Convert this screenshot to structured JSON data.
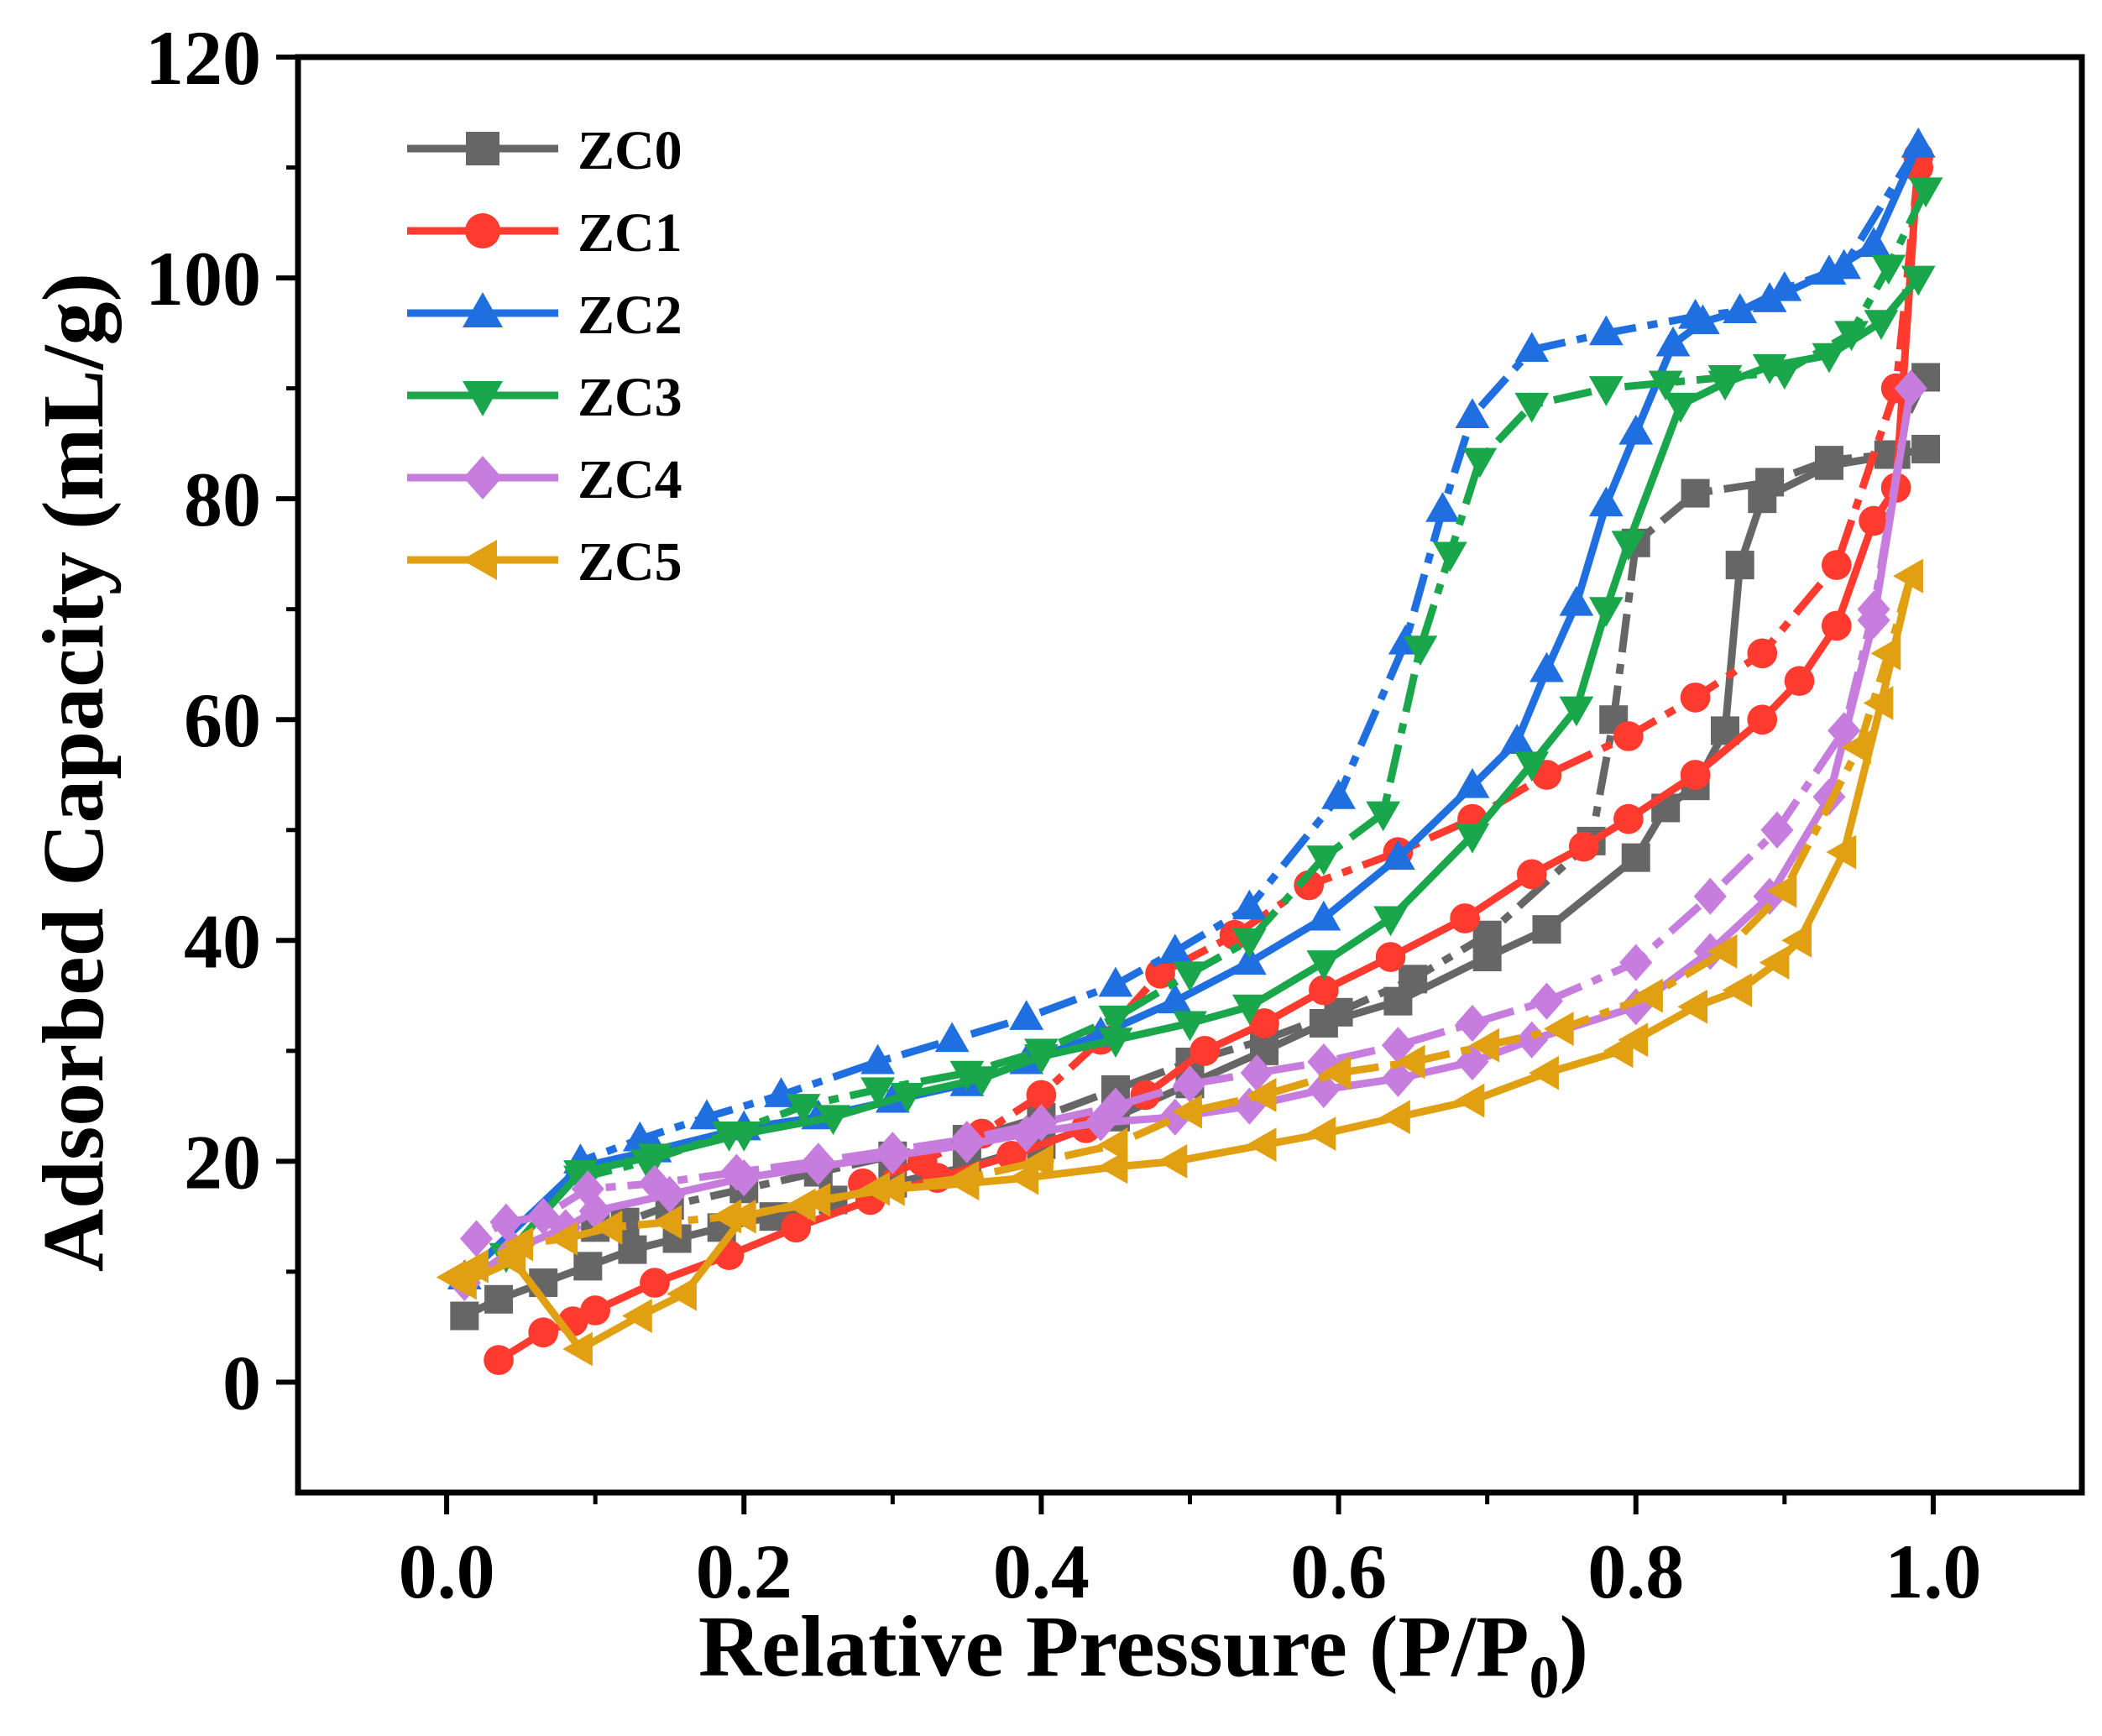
{
  "chart_data": {
    "type": "line",
    "xlabel": "Relative Pressure (P/P",
    "xlabel_sub": "0",
    "xlabel_end": ")",
    "ylabel": "Adsorbed Capacity (mL/g)",
    "xlim": [
      -0.1,
      1.1
    ],
    "ylim": [
      -10,
      120
    ],
    "xticks": [
      0.0,
      0.2,
      0.4,
      0.6,
      0.8,
      1.0
    ],
    "xtick_labels": [
      "0.0",
      "0.2",
      "0.4",
      "0.6",
      "0.8",
      "1.0"
    ],
    "yticks": [
      0,
      20,
      40,
      60,
      80,
      100,
      120
    ],
    "ytick_labels": [
      "0",
      "20",
      "40",
      "60",
      "80",
      "100",
      "120"
    ],
    "legend_position": "top-left",
    "series": [
      {
        "name": "ZC0",
        "color": "#666666",
        "marker": "square",
        "adsorption": [
          [
            0.012,
            6
          ],
          [
            0.035,
            7.5
          ],
          [
            0.065,
            9
          ],
          [
            0.095,
            10.5
          ],
          [
            0.125,
            12
          ],
          [
            0.155,
            13
          ],
          [
            0.185,
            14
          ],
          [
            0.22,
            15
          ],
          [
            0.26,
            16.5
          ],
          [
            0.3,
            18
          ],
          [
            0.35,
            19.5
          ],
          [
            0.4,
            21.5
          ],
          [
            0.45,
            24
          ],
          [
            0.5,
            27
          ],
          [
            0.55,
            30
          ],
          [
            0.59,
            32.5
          ],
          [
            0.64,
            34.5
          ],
          [
            0.7,
            38.5
          ],
          [
            0.74,
            41
          ],
          [
            0.8,
            47.5
          ],
          [
            0.82,
            52
          ],
          [
            0.84,
            54
          ],
          [
            0.86,
            59
          ],
          [
            0.87,
            74
          ],
          [
            0.885,
            80
          ],
          [
            0.93,
            83
          ],
          [
            0.975,
            84
          ],
          [
            0.995,
            84.5
          ]
        ],
        "desorption": [
          [
            0.995,
            91
          ],
          [
            0.97,
            84
          ],
          [
            0.93,
            83.5
          ],
          [
            0.89,
            81.5
          ],
          [
            0.84,
            80.5
          ],
          [
            0.8,
            76
          ],
          [
            0.785,
            60
          ],
          [
            0.77,
            49
          ],
          [
            0.7,
            40.5
          ],
          [
            0.65,
            36.5
          ],
          [
            0.6,
            33.5
          ],
          [
            0.55,
            31
          ],
          [
            0.5,
            29
          ],
          [
            0.45,
            26.5
          ],
          [
            0.4,
            24
          ],
          [
            0.35,
            22
          ],
          [
            0.3,
            20.5
          ],
          [
            0.25,
            19
          ],
          [
            0.2,
            17.5
          ],
          [
            0.15,
            16
          ],
          [
            0.12,
            14.5
          ],
          [
            0.1,
            14
          ]
        ]
      },
      {
        "name": "ZC1",
        "color": "#ff3b30",
        "marker": "circle",
        "adsorption": [
          [
            0.035,
            2
          ],
          [
            0.065,
            4.5
          ],
          [
            0.085,
            5.5
          ],
          [
            0.1,
            6.5
          ],
          [
            0.14,
            9
          ],
          [
            0.19,
            11.5
          ],
          [
            0.235,
            14
          ],
          [
            0.285,
            16.5
          ],
          [
            0.33,
            18.5
          ],
          [
            0.38,
            20.5
          ],
          [
            0.43,
            23
          ],
          [
            0.47,
            26
          ],
          [
            0.51,
            30
          ],
          [
            0.55,
            32.5
          ],
          [
            0.59,
            35.5
          ],
          [
            0.635,
            38.5
          ],
          [
            0.685,
            42
          ],
          [
            0.73,
            46
          ],
          [
            0.765,
            48.5
          ],
          [
            0.795,
            51
          ],
          [
            0.84,
            55
          ],
          [
            0.885,
            60
          ],
          [
            0.91,
            63.5
          ],
          [
            0.935,
            68.5
          ],
          [
            0.96,
            78
          ],
          [
            0.975,
            81
          ],
          [
            0.99,
            111
          ]
        ],
        "desorption": [
          [
            0.99,
            110
          ],
          [
            0.975,
            90
          ],
          [
            0.935,
            74
          ],
          [
            0.885,
            66
          ],
          [
            0.84,
            62
          ],
          [
            0.795,
            58.5
          ],
          [
            0.74,
            55
          ],
          [
            0.69,
            51
          ],
          [
            0.64,
            48
          ],
          [
            0.58,
            45
          ],
          [
            0.53,
            40.5
          ],
          [
            0.48,
            37
          ],
          [
            0.44,
            31
          ],
          [
            0.4,
            26
          ],
          [
            0.36,
            22.5
          ],
          [
            0.32,
            20
          ],
          [
            0.28,
            18
          ]
        ]
      },
      {
        "name": "ZC2",
        "color": "#1f6fe0",
        "marker": "triangle-up",
        "adsorption": [
          [
            0.012,
            9.5
          ],
          [
            0.09,
            19.5
          ],
          [
            0.14,
            21
          ],
          [
            0.2,
            23
          ],
          [
            0.25,
            24
          ],
          [
            0.3,
            25.5
          ],
          [
            0.35,
            27
          ],
          [
            0.39,
            29
          ],
          [
            0.44,
            31.5
          ],
          [
            0.49,
            34.5
          ],
          [
            0.54,
            38
          ],
          [
            0.59,
            42
          ],
          [
            0.64,
            47.5
          ],
          [
            0.69,
            54
          ],
          [
            0.72,
            58
          ],
          [
            0.74,
            64.5
          ],
          [
            0.76,
            70.5
          ],
          [
            0.78,
            79.5
          ],
          [
            0.8,
            86
          ],
          [
            0.825,
            94
          ],
          [
            0.845,
            96
          ],
          [
            0.87,
            97
          ],
          [
            0.89,
            98
          ],
          [
            0.93,
            100.5
          ],
          [
            0.96,
            103
          ],
          [
            0.99,
            112
          ]
        ],
        "desorption": [
          [
            0.99,
            112
          ],
          [
            0.94,
            101
          ],
          [
            0.9,
            99
          ],
          [
            0.87,
            97
          ],
          [
            0.84,
            96.5
          ],
          [
            0.78,
            95
          ],
          [
            0.73,
            93.5
          ],
          [
            0.69,
            87.5
          ],
          [
            0.67,
            79
          ],
          [
            0.645,
            67
          ],
          [
            0.6,
            53
          ],
          [
            0.54,
            43
          ],
          [
            0.49,
            39
          ],
          [
            0.45,
            36
          ],
          [
            0.39,
            33
          ],
          [
            0.34,
            31
          ],
          [
            0.29,
            29
          ],
          [
            0.225,
            26
          ],
          [
            0.175,
            24
          ],
          [
            0.13,
            22
          ],
          [
            0.09,
            20
          ]
        ]
      },
      {
        "name": "ZC3",
        "color": "#1aa64b",
        "marker": "triangle-down",
        "adsorption": [
          [
            0.012,
            9
          ],
          [
            0.04,
            11.5
          ],
          [
            0.09,
            19
          ],
          [
            0.14,
            20.5
          ],
          [
            0.2,
            22.5
          ],
          [
            0.26,
            24
          ],
          [
            0.31,
            26
          ],
          [
            0.36,
            27.5
          ],
          [
            0.4,
            29.5
          ],
          [
            0.45,
            31
          ],
          [
            0.5,
            32.5
          ],
          [
            0.54,
            34
          ],
          [
            0.59,
            38
          ],
          [
            0.635,
            42
          ],
          [
            0.69,
            49.5
          ],
          [
            0.73,
            56
          ],
          [
            0.76,
            61
          ],
          [
            0.78,
            70
          ],
          [
            0.795,
            76
          ],
          [
            0.83,
            88.5
          ],
          [
            0.86,
            90.5
          ],
          [
            0.89,
            92
          ],
          [
            0.93,
            93
          ],
          [
            0.965,
            96
          ],
          [
            0.99,
            100
          ]
        ],
        "desorption": [
          [
            0.995,
            108
          ],
          [
            0.97,
            101
          ],
          [
            0.945,
            95
          ],
          [
            0.9,
            91.5
          ],
          [
            0.86,
            91
          ],
          [
            0.82,
            90.5
          ],
          [
            0.78,
            90
          ],
          [
            0.73,
            88.5
          ],
          [
            0.695,
            83.5
          ],
          [
            0.675,
            75
          ],
          [
            0.655,
            66.5
          ],
          [
            0.63,
            51.5
          ],
          [
            0.59,
            47.5
          ],
          [
            0.54,
            40
          ],
          [
            0.5,
            37
          ],
          [
            0.45,
            33
          ],
          [
            0.4,
            30
          ],
          [
            0.35,
            28
          ],
          [
            0.29,
            26.5
          ],
          [
            0.24,
            25
          ],
          [
            0.19,
            22.5
          ],
          [
            0.135,
            20
          ],
          [
            0.09,
            18.5
          ]
        ]
      },
      {
        "name": "ZC4",
        "color": "#c77ddd",
        "marker": "diamond",
        "adsorption": [
          [
            0.012,
            9
          ],
          [
            0.045,
            12
          ],
          [
            0.08,
            14
          ],
          [
            0.1,
            15.5
          ],
          [
            0.15,
            17
          ],
          [
            0.2,
            18.5
          ],
          [
            0.25,
            19.5
          ],
          [
            0.3,
            20.5
          ],
          [
            0.35,
            21.5
          ],
          [
            0.39,
            22.5
          ],
          [
            0.44,
            23.5
          ],
          [
            0.49,
            24
          ],
          [
            0.54,
            25
          ],
          [
            0.59,
            26.5
          ],
          [
            0.64,
            27.5
          ],
          [
            0.69,
            29
          ],
          [
            0.73,
            31
          ],
          [
            0.8,
            34
          ],
          [
            0.85,
            39
          ],
          [
            0.89,
            44
          ],
          [
            0.93,
            53
          ],
          [
            0.96,
            69
          ],
          [
            0.985,
            90
          ]
        ],
        "desorption": [
          [
            0.985,
            90
          ],
          [
            0.96,
            70
          ],
          [
            0.94,
            59
          ],
          [
            0.895,
            50
          ],
          [
            0.85,
            44
          ],
          [
            0.8,
            38
          ],
          [
            0.74,
            34.5
          ],
          [
            0.69,
            32.5
          ],
          [
            0.64,
            30.5
          ],
          [
            0.59,
            29
          ],
          [
            0.545,
            28
          ],
          [
            0.5,
            27
          ],
          [
            0.45,
            25
          ],
          [
            0.4,
            23.5
          ],
          [
            0.35,
            22
          ],
          [
            0.3,
            21
          ],
          [
            0.25,
            20
          ],
          [
            0.195,
            19
          ],
          [
            0.14,
            18
          ],
          [
            0.095,
            17.5
          ],
          [
            0.065,
            15
          ],
          [
            0.04,
            14.5
          ],
          [
            0.02,
            13
          ]
        ]
      },
      {
        "name": "ZC5",
        "color": "#e0a012",
        "marker": "triangle-left",
        "adsorption": [
          [
            0.012,
            9
          ],
          [
            0.045,
            11
          ],
          [
            0.09,
            3
          ],
          [
            0.13,
            6
          ],
          [
            0.16,
            8
          ],
          [
            0.2,
            15
          ],
          [
            0.25,
            16.5
          ],
          [
            0.3,
            17.5
          ],
          [
            0.35,
            18
          ],
          [
            0.39,
            18.5
          ],
          [
            0.45,
            19.5
          ],
          [
            0.49,
            20
          ],
          [
            0.55,
            21.5
          ],
          [
            0.59,
            22.5
          ],
          [
            0.64,
            24
          ],
          [
            0.69,
            25.5
          ],
          [
            0.74,
            28
          ],
          [
            0.79,
            30
          ],
          [
            0.8,
            31
          ],
          [
            0.84,
            34
          ],
          [
            0.87,
            35.5
          ],
          [
            0.895,
            38
          ],
          [
            0.91,
            40
          ],
          [
            0.94,
            48
          ],
          [
            0.965,
            61.5
          ],
          [
            0.985,
            73
          ]
        ],
        "desorption": [
          [
            0.985,
            73
          ],
          [
            0.97,
            66
          ],
          [
            0.95,
            57.5
          ],
          [
            0.9,
            44.5
          ],
          [
            0.86,
            39
          ],
          [
            0.81,
            35
          ],
          [
            0.75,
            32
          ],
          [
            0.7,
            30.5
          ],
          [
            0.65,
            29
          ],
          [
            0.6,
            28
          ],
          [
            0.55,
            26
          ],
          [
            0.5,
            24.5
          ],
          [
            0.45,
            21.5
          ],
          [
            0.4,
            20
          ],
          [
            0.35,
            18.5
          ],
          [
            0.29,
            17.5
          ],
          [
            0.24,
            16
          ],
          [
            0.19,
            15
          ],
          [
            0.15,
            14.5
          ],
          [
            0.11,
            14
          ],
          [
            0.08,
            13
          ],
          [
            0.05,
            12.5
          ],
          [
            0.02,
            10.5
          ],
          [
            0.005,
            9.5
          ]
        ]
      }
    ]
  }
}
